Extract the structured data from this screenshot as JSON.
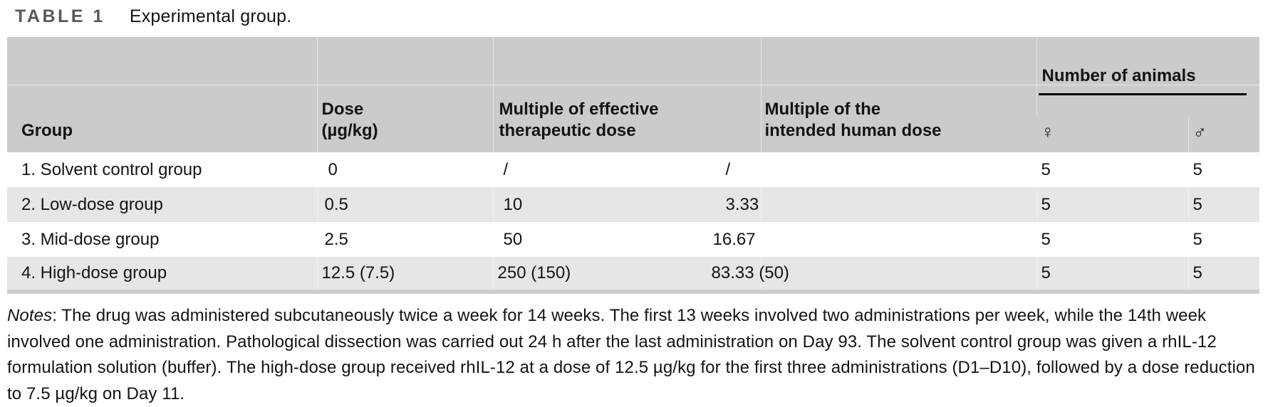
{
  "caption": {
    "label": "TABLE 1",
    "text": "Experimental group."
  },
  "table": {
    "columns": {
      "group": "Group",
      "dose": "Dose\n(µg/kg)",
      "multiple_effective": "Multiple of effective\ntherapeutic dose",
      "multiple_human": "Multiple of the\nintended human dose",
      "number_of_animals": "Number of animals",
      "female_symbol": "♀",
      "male_symbol": "♂"
    },
    "rows": [
      {
        "group": "1. Solvent control group",
        "dose": "0",
        "multiple_effective": "/",
        "multiple_human": "/",
        "female": "5",
        "male": "5"
      },
      {
        "group": "2. Low-dose group",
        "dose": "0.5",
        "multiple_effective": "10",
        "multiple_human": "3.33",
        "female": "5",
        "male": "5"
      },
      {
        "group": "3. Mid-dose group",
        "dose": "2.5",
        "multiple_effective": "50",
        "multiple_human": "16.67",
        "female": "5",
        "male": "5"
      },
      {
        "group": "4. High-dose group",
        "dose": "12.5 (7.5)",
        "multiple_effective": "250 (150)",
        "multiple_human": "83.33 (50)",
        "female": "5",
        "male": "5"
      }
    ]
  },
  "notes": {
    "label": "Notes",
    "text": ": The drug was administered subcutaneously twice a week for 14 weeks. The first 13 weeks involved two administrations per week, while the 14th week involved one administration. Pathological dissection was carried out 24 h after the last administration on Day 93. The solvent control group was given a rhIL-12 formulation solution (buffer). The high-dose group received rhIL-12 at a dose of 12.5 µg/kg for the first three administrations (D1–D10), followed by a dose reduction to 7.5 µg/kg on Day 11."
  },
  "colors": {
    "header_bg": "#cbcbcb",
    "alt_row_bg": "#e6e6e5",
    "strip": "#cdcdcd",
    "title_gray": "#595959",
    "ink": "#141414"
  }
}
